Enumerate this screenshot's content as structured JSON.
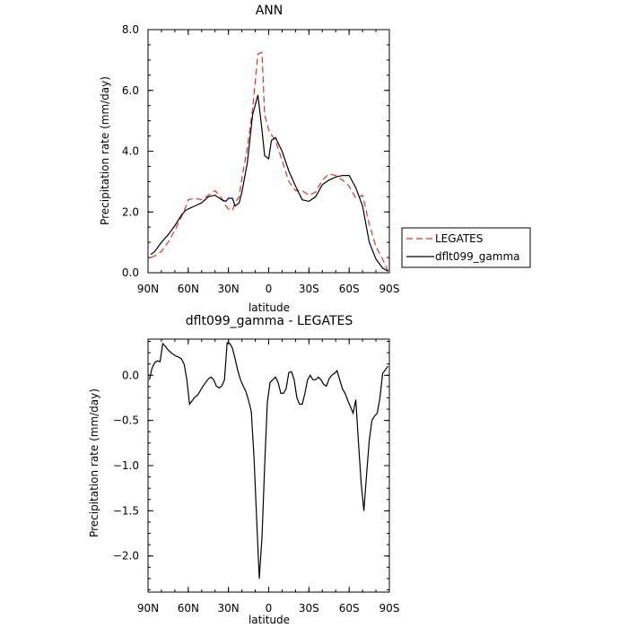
{
  "chart_data": [
    {
      "type": "line",
      "title": "ANN",
      "xlabel": "latitude",
      "ylabel": "Precipitation rate (mm/day)",
      "xlim": [
        90,
        -90
      ],
      "ylim": [
        0,
        8
      ],
      "x_ticks": [
        {
          "value": 90,
          "label": "90N"
        },
        {
          "value": 60,
          "label": "60N"
        },
        {
          "value": 30,
          "label": "30N"
        },
        {
          "value": 0,
          "label": "0"
        },
        {
          "value": -30,
          "label": "30S"
        },
        {
          "value": -60,
          "label": "60S"
        },
        {
          "value": -90,
          "label": "90S"
        }
      ],
      "y_ticks": [
        {
          "value": 0,
          "label": "0.0"
        },
        {
          "value": 2,
          "label": "2.0"
        },
        {
          "value": 4,
          "label": "4.0"
        },
        {
          "value": 6,
          "label": "6.0"
        },
        {
          "value": 8,
          "label": "8.0"
        }
      ],
      "legend": {
        "placement": "right"
      },
      "grid": false,
      "series": [
        {
          "name": "LEGATES",
          "color": "#e03030",
          "dash": "dashed",
          "x": [
            88,
            85,
            80,
            75,
            70,
            65,
            62,
            60,
            55,
            50,
            45,
            40,
            35,
            32,
            30,
            27,
            25,
            22,
            20,
            16,
            12,
            8,
            5,
            3,
            0,
            -2,
            -5,
            -10,
            -15,
            -20,
            -25,
            -30,
            -35,
            -40,
            -45,
            -50,
            -55,
            -60,
            -65,
            -70,
            -75,
            -80,
            -85,
            -89
          ],
          "y": [
            0.5,
            0.55,
            0.7,
            1.0,
            1.4,
            1.85,
            2.15,
            2.4,
            2.45,
            2.4,
            2.55,
            2.7,
            2.45,
            2.2,
            2.1,
            2.05,
            2.3,
            2.5,
            3.1,
            4.1,
            5.4,
            7.2,
            7.25,
            5.2,
            4.7,
            4.55,
            4.35,
            3.7,
            3.0,
            2.7,
            2.7,
            2.55,
            2.65,
            3.05,
            3.25,
            3.2,
            3.05,
            2.85,
            2.45,
            2.55,
            1.6,
            0.85,
            0.45,
            0.05
          ]
        },
        {
          "name": "dflt099_gamma",
          "color": "#000000",
          "dash": "solid",
          "x": [
            88,
            85,
            80,
            75,
            70,
            65,
            62,
            60,
            55,
            50,
            45,
            40,
            35,
            32,
            30,
            27,
            25,
            22,
            20,
            16,
            12,
            8,
            5,
            3,
            0,
            -2,
            -5,
            -10,
            -15,
            -20,
            -25,
            -30,
            -35,
            -40,
            -45,
            -50,
            -55,
            -60,
            -65,
            -70,
            -75,
            -80,
            -85,
            -89
          ],
          "y": [
            0.6,
            0.7,
            1.0,
            1.25,
            1.55,
            1.9,
            2.05,
            2.1,
            2.2,
            2.3,
            2.5,
            2.55,
            2.4,
            2.35,
            2.45,
            2.45,
            2.2,
            2.3,
            2.65,
            3.6,
            5.2,
            5.85,
            4.7,
            3.85,
            3.75,
            4.35,
            4.45,
            4.0,
            3.35,
            2.85,
            2.4,
            2.35,
            2.5,
            2.9,
            3.05,
            3.15,
            3.2,
            3.2,
            2.8,
            2.2,
            1.0,
            0.45,
            0.15,
            0.05
          ]
        }
      ]
    },
    {
      "type": "line",
      "title": "dflt099_gamma - LEGATES",
      "xlabel": "latitude",
      "ylabel": "Precipitation rate (mm/day)",
      "xlim": [
        90,
        -90
      ],
      "ylim": [
        -2.4,
        0.4
      ],
      "x_ticks": [
        {
          "value": 90,
          "label": "90N"
        },
        {
          "value": 60,
          "label": "60N"
        },
        {
          "value": 30,
          "label": "30N"
        },
        {
          "value": 0,
          "label": "0"
        },
        {
          "value": -30,
          "label": "30S"
        },
        {
          "value": -60,
          "label": "60S"
        },
        {
          "value": -90,
          "label": "90S"
        }
      ],
      "y_ticks": [
        {
          "value": 0,
          "label": "0.0"
        },
        {
          "value": -0.5,
          "label": "−0.5"
        },
        {
          "value": -1,
          "label": "−1.0"
        },
        {
          "value": -1.5,
          "label": "−1.5"
        },
        {
          "value": -2,
          "label": "−2.0"
        }
      ],
      "grid": false,
      "series": [
        {
          "color": "#000000",
          "dash": "solid",
          "x": [
            89,
            87,
            85,
            83,
            81,
            79,
            77,
            75,
            72,
            69,
            67,
            65,
            63,
            61,
            59,
            57,
            55,
            53,
            51,
            49,
            47,
            45,
            43,
            41,
            39,
            37,
            35,
            33,
            31,
            29,
            27,
            25,
            23,
            21,
            19,
            17,
            15,
            13,
            11,
            9,
            7,
            5,
            3,
            1,
            -1,
            -3,
            -5,
            -7,
            -9,
            -11,
            -13,
            -15,
            -17,
            -19,
            -21,
            -23,
            -25,
            -27,
            -29,
            -31,
            -33,
            -35,
            -37,
            -39,
            -41,
            -43,
            -45,
            -47,
            -49,
            -51,
            -53,
            -55,
            -57,
            -59,
            -61,
            -63,
            -65,
            -67,
            -69,
            -71,
            -73,
            -75,
            -77,
            -79,
            -81,
            -83,
            -85,
            -87,
            -89
          ],
          "y": [
            -0.05,
            0.08,
            0.14,
            0.16,
            0.15,
            0.35,
            0.32,
            0.28,
            0.24,
            0.21,
            0.2,
            0.18,
            0.12,
            -0.05,
            -0.32,
            -0.28,
            -0.24,
            -0.22,
            -0.17,
            -0.12,
            -0.08,
            -0.04,
            -0.02,
            -0.05,
            -0.12,
            -0.14,
            -0.12,
            -0.05,
            0.36,
            0.35,
            0.3,
            0.18,
            0.05,
            -0.05,
            -0.12,
            -0.18,
            -0.28,
            -0.4,
            -0.9,
            -1.6,
            -2.25,
            -1.8,
            -1.0,
            -0.3,
            -0.08,
            -0.05,
            -0.02,
            -0.08,
            -0.2,
            -0.2,
            -0.15,
            0.03,
            0.04,
            -0.05,
            -0.25,
            -0.32,
            -0.32,
            -0.2,
            -0.05,
            0.0,
            -0.05,
            -0.05,
            -0.02,
            -0.05,
            -0.1,
            -0.12,
            -0.04,
            0.0,
            0.02,
            0.05,
            -0.05,
            -0.15,
            -0.2,
            -0.28,
            -0.35,
            -0.42,
            -0.27,
            -0.75,
            -1.2,
            -1.5,
            -1.1,
            -0.72,
            -0.5,
            -0.45,
            -0.42,
            -0.25,
            0.02,
            0.06,
            0.1
          ]
        }
      ]
    }
  ]
}
